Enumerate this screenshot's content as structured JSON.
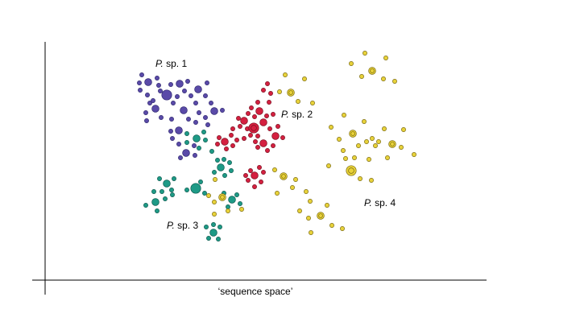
{
  "chart_data": {
    "type": "scatter",
    "title": "",
    "xlabel": "‘sequence space’",
    "ylabel": "",
    "grid": false,
    "legend": "none",
    "series": [
      {
        "label_italic": "P.",
        "label_rest": " sp. 1",
        "color": "#5a4aa8",
        "outline": "#2f2870",
        "points": [
          {
            "x": 184,
            "y": 102,
            "s": 2
          },
          {
            "x": 207,
            "y": 118,
            "s": 3
          },
          {
            "x": 223,
            "y": 104,
            "s": 2
          },
          {
            "x": 246,
            "y": 111,
            "s": 2
          },
          {
            "x": 193,
            "y": 135,
            "s": 2
          },
          {
            "x": 228,
            "y": 137,
            "s": 2
          },
          {
            "x": 266,
            "y": 138,
            "s": 2
          },
          {
            "x": 222,
            "y": 162,
            "s": 2
          },
          {
            "x": 231,
            "y": 190,
            "s": 2
          },
          {
            "x": 173,
            "y": 103,
            "s": 1
          },
          {
            "x": 176,
            "y": 93,
            "s": 1
          },
          {
            "x": 174,
            "y": 112,
            "s": 1
          },
          {
            "x": 183,
            "y": 118,
            "s": 1
          },
          {
            "x": 195,
            "y": 97,
            "s": 1
          },
          {
            "x": 197,
            "y": 106,
            "s": 1
          },
          {
            "x": 199,
            "y": 113,
            "s": 1
          },
          {
            "x": 212,
            "y": 105,
            "s": 1
          },
          {
            "x": 215,
            "y": 128,
            "s": 1
          },
          {
            "x": 220,
            "y": 120,
            "s": 1
          },
          {
            "x": 233,
            "y": 101,
            "s": 1
          },
          {
            "x": 237,
            "y": 119,
            "s": 1
          },
          {
            "x": 243,
            "y": 128,
            "s": 1
          },
          {
            "x": 257,
            "y": 103,
            "s": 1
          },
          {
            "x": 255,
            "y": 119,
            "s": 1
          },
          {
            "x": 262,
            "y": 128,
            "s": 1
          },
          {
            "x": 276,
            "y": 137,
            "s": 1
          },
          {
            "x": 186,
            "y": 128,
            "s": 1
          },
          {
            "x": 181,
            "y": 140,
            "s": 1
          },
          {
            "x": 182,
            "y": 150,
            "s": 1
          },
          {
            "x": 200,
            "y": 146,
            "s": 1
          },
          {
            "x": 213,
            "y": 148,
            "s": 1
          },
          {
            "x": 234,
            "y": 148,
            "s": 1
          },
          {
            "x": 243,
            "y": 152,
            "s": 1
          },
          {
            "x": 255,
            "y": 146,
            "s": 1
          },
          {
            "x": 258,
            "y": 155,
            "s": 1
          },
          {
            "x": 212,
            "y": 163,
            "s": 1
          },
          {
            "x": 214,
            "y": 172,
            "s": 1
          },
          {
            "x": 222,
            "y": 179,
            "s": 1
          },
          {
            "x": 241,
            "y": 181,
            "s": 1
          },
          {
            "x": 224,
            "y": 196,
            "s": 1
          },
          {
            "x": 242,
            "y": 193,
            "s": 1
          },
          {
            "x": 190,
            "y": 125,
            "s": 1
          },
          {
            "x": 229,
            "y": 113,
            "s": 1
          },
          {
            "x": 247,
            "y": 140,
            "s": 1
          }
        ]
      },
      {
        "label_italic": "P.",
        "label_rest": " sp. 2",
        "color": "#d42040",
        "outline": "#7a1020",
        "points": [
          {
            "x": 315,
            "y": 159,
            "s": 3,
            "ring": true
          },
          {
            "x": 327,
            "y": 152,
            "s": 2
          },
          {
            "x": 322,
            "y": 138,
            "s": 2
          },
          {
            "x": 303,
            "y": 150,
            "s": 2
          },
          {
            "x": 342,
            "y": 169,
            "s": 2
          },
          {
            "x": 327,
            "y": 178,
            "s": 2
          },
          {
            "x": 279,
            "y": 176,
            "s": 2
          },
          {
            "x": 316,
            "y": 218,
            "s": 2
          },
          {
            "x": 332,
            "y": 104,
            "s": 1
          },
          {
            "x": 327,
            "y": 112,
            "s": 1
          },
          {
            "x": 336,
            "y": 116,
            "s": 1
          },
          {
            "x": 334,
            "y": 127,
            "s": 1
          },
          {
            "x": 320,
            "y": 127,
            "s": 1
          },
          {
            "x": 312,
            "y": 134,
            "s": 1
          },
          {
            "x": 308,
            "y": 141,
            "s": 1
          },
          {
            "x": 316,
            "y": 145,
            "s": 1
          },
          {
            "x": 331,
            "y": 144,
            "s": 1
          },
          {
            "x": 339,
            "y": 142,
            "s": 1
          },
          {
            "x": 296,
            "y": 147,
            "s": 1
          },
          {
            "x": 298,
            "y": 157,
            "s": 1
          },
          {
            "x": 289,
            "y": 160,
            "s": 1
          },
          {
            "x": 307,
            "y": 160,
            "s": 1
          },
          {
            "x": 311,
            "y": 168,
            "s": 1
          },
          {
            "x": 320,
            "y": 169,
            "s": 1
          },
          {
            "x": 335,
            "y": 160,
            "s": 1
          },
          {
            "x": 345,
            "y": 157,
            "s": 1
          },
          {
            "x": 351,
            "y": 171,
            "s": 1
          },
          {
            "x": 339,
            "y": 181,
            "s": 1
          },
          {
            "x": 320,
            "y": 183,
            "s": 1
          },
          {
            "x": 317,
            "y": 176,
            "s": 1
          },
          {
            "x": 332,
            "y": 187,
            "s": 1
          },
          {
            "x": 303,
            "y": 172,
            "s": 1
          },
          {
            "x": 294,
            "y": 174,
            "s": 1
          },
          {
            "x": 287,
            "y": 168,
            "s": 1
          },
          {
            "x": 272,
            "y": 171,
            "s": 1
          },
          {
            "x": 270,
            "y": 179,
            "s": 1
          },
          {
            "x": 281,
            "y": 185,
            "s": 1
          },
          {
            "x": 289,
            "y": 181,
            "s": 1
          },
          {
            "x": 322,
            "y": 208,
            "s": 1
          },
          {
            "x": 311,
            "y": 212,
            "s": 1
          },
          {
            "x": 308,
            "y": 224,
            "s": 1
          },
          {
            "x": 316,
            "y": 232,
            "s": 1
          },
          {
            "x": 324,
            "y": 226,
            "s": 1
          },
          {
            "x": 327,
            "y": 214,
            "s": 1
          },
          {
            "x": 305,
            "y": 218,
            "s": 1
          }
        ]
      },
      {
        "label_italic": "P.",
        "label_rest": " sp. 3",
        "color": "#1e9a86",
        "outline": "#0d5a4e",
        "points": [
          {
            "x": 243,
            "y": 234,
            "s": 3
          },
          {
            "x": 244,
            "y": 172,
            "s": 2
          },
          {
            "x": 274,
            "y": 208,
            "s": 2
          },
          {
            "x": 207,
            "y": 228,
            "s": 2
          },
          {
            "x": 193,
            "y": 251,
            "s": 2
          },
          {
            "x": 288,
            "y": 248,
            "s": 2
          },
          {
            "x": 265,
            "y": 289,
            "s": 2
          },
          {
            "x": 232,
            "y": 166,
            "s": 1
          },
          {
            "x": 232,
            "y": 177,
            "s": 1
          },
          {
            "x": 253,
            "y": 164,
            "s": 1
          },
          {
            "x": 255,
            "y": 174,
            "s": 1
          },
          {
            "x": 263,
            "y": 188,
            "s": 1
          },
          {
            "x": 247,
            "y": 184,
            "s": 1
          },
          {
            "x": 278,
            "y": 198,
            "s": 1
          },
          {
            "x": 285,
            "y": 202,
            "s": 1
          },
          {
            "x": 287,
            "y": 212,
            "s": 1
          },
          {
            "x": 279,
            "y": 218,
            "s": 1
          },
          {
            "x": 266,
            "y": 214,
            "s": 1
          },
          {
            "x": 270,
            "y": 199,
            "s": 1
          },
          {
            "x": 216,
            "y": 222,
            "s": 1
          },
          {
            "x": 213,
            "y": 236,
            "s": 1
          },
          {
            "x": 201,
            "y": 238,
            "s": 1
          },
          {
            "x": 198,
            "y": 222,
            "s": 1
          },
          {
            "x": 191,
            "y": 238,
            "s": 1
          },
          {
            "x": 181,
            "y": 255,
            "s": 1
          },
          {
            "x": 195,
            "y": 262,
            "s": 1
          },
          {
            "x": 205,
            "y": 247,
            "s": 1
          },
          {
            "x": 232,
            "y": 236,
            "s": 1
          },
          {
            "x": 254,
            "y": 240,
            "s": 1
          },
          {
            "x": 249,
            "y": 226,
            "s": 1
          },
          {
            "x": 278,
            "y": 240,
            "s": 1
          },
          {
            "x": 283,
            "y": 257,
            "s": 1
          },
          {
            "x": 294,
            "y": 242,
            "s": 1
          },
          {
            "x": 298,
            "y": 253,
            "s": 1
          },
          {
            "x": 256,
            "y": 282,
            "s": 1
          },
          {
            "x": 273,
            "y": 282,
            "s": 1
          },
          {
            "x": 259,
            "y": 296,
            "s": 1
          },
          {
            "x": 271,
            "y": 297,
            "s": 1
          },
          {
            "x": 265,
            "y": 279,
            "s": 1
          },
          {
            "x": 214,
            "y": 242,
            "s": 1
          }
        ]
      },
      {
        "label_italic": "P.",
        "label_rest": " sp. 4",
        "color": "#e8d23a",
        "outline": "#7a6a10",
        "points": [
          {
            "x": 436,
            "y": 212,
            "s": 3,
            "ring": true
          },
          {
            "x": 462,
            "y": 88,
            "s": 2,
            "ring": true
          },
          {
            "x": 361,
            "y": 115,
            "s": 2,
            "ring": true
          },
          {
            "x": 438,
            "y": 166,
            "s": 2,
            "ring": true
          },
          {
            "x": 487,
            "y": 179,
            "s": 2,
            "ring": true
          },
          {
            "x": 352,
            "y": 219,
            "s": 2,
            "ring": true
          },
          {
            "x": 398,
            "y": 268,
            "s": 2,
            "ring": true
          },
          {
            "x": 276,
            "y": 245,
            "s": 2,
            "ring": true
          },
          {
            "x": 436,
            "y": 79,
            "s": 1
          },
          {
            "x": 453,
            "y": 66,
            "s": 1
          },
          {
            "x": 479,
            "y": 72,
            "s": 1
          },
          {
            "x": 449,
            "y": 95,
            "s": 1
          },
          {
            "x": 476,
            "y": 98,
            "s": 1
          },
          {
            "x": 490,
            "y": 101,
            "s": 1
          },
          {
            "x": 354,
            "y": 93,
            "s": 1
          },
          {
            "x": 378,
            "y": 98,
            "s": 1
          },
          {
            "x": 347,
            "y": 114,
            "s": 1
          },
          {
            "x": 370,
            "y": 126,
            "s": 1
          },
          {
            "x": 388,
            "y": 128,
            "s": 1
          },
          {
            "x": 427,
            "y": 143,
            "s": 1
          },
          {
            "x": 411,
            "y": 158,
            "s": 1
          },
          {
            "x": 452,
            "y": 151,
            "s": 1
          },
          {
            "x": 455,
            "y": 176,
            "s": 1
          },
          {
            "x": 462,
            "y": 172,
            "s": 1
          },
          {
            "x": 466,
            "y": 181,
            "s": 1
          },
          {
            "x": 470,
            "y": 176,
            "s": 1
          },
          {
            "x": 477,
            "y": 160,
            "s": 1
          },
          {
            "x": 501,
            "y": 161,
            "s": 1
          },
          {
            "x": 498,
            "y": 183,
            "s": 1
          },
          {
            "x": 514,
            "y": 192,
            "s": 1
          },
          {
            "x": 445,
            "y": 181,
            "s": 1
          },
          {
            "x": 440,
            "y": 196,
            "s": 1
          },
          {
            "x": 426,
            "y": 187,
            "s": 1
          },
          {
            "x": 421,
            "y": 173,
            "s": 1
          },
          {
            "x": 408,
            "y": 206,
            "s": 1
          },
          {
            "x": 429,
            "y": 197,
            "s": 1
          },
          {
            "x": 458,
            "y": 198,
            "s": 1
          },
          {
            "x": 481,
            "y": 196,
            "s": 1
          },
          {
            "x": 447,
            "y": 222,
            "s": 1
          },
          {
            "x": 461,
            "y": 224,
            "s": 1
          },
          {
            "x": 341,
            "y": 211,
            "s": 1
          },
          {
            "x": 363,
            "y": 233,
            "s": 1
          },
          {
            "x": 367,
            "y": 223,
            "s": 1
          },
          {
            "x": 380,
            "y": 238,
            "s": 1
          },
          {
            "x": 385,
            "y": 250,
            "s": 1
          },
          {
            "x": 372,
            "y": 262,
            "s": 1
          },
          {
            "x": 383,
            "y": 271,
            "s": 1
          },
          {
            "x": 406,
            "y": 255,
            "s": 1
          },
          {
            "x": 412,
            "y": 280,
            "s": 1
          },
          {
            "x": 386,
            "y": 289,
            "s": 1
          },
          {
            "x": 425,
            "y": 284,
            "s": 1
          },
          {
            "x": 344,
            "y": 240,
            "s": 1
          },
          {
            "x": 267,
            "y": 223,
            "s": 1
          },
          {
            "x": 259,
            "y": 243,
            "s": 1
          },
          {
            "x": 266,
            "y": 251,
            "s": 1
          },
          {
            "x": 283,
            "y": 262,
            "s": 1
          },
          {
            "x": 300,
            "y": 260,
            "s": 1
          },
          {
            "x": 266,
            "y": 266,
            "s": 1
          }
        ]
      }
    ]
  }
}
